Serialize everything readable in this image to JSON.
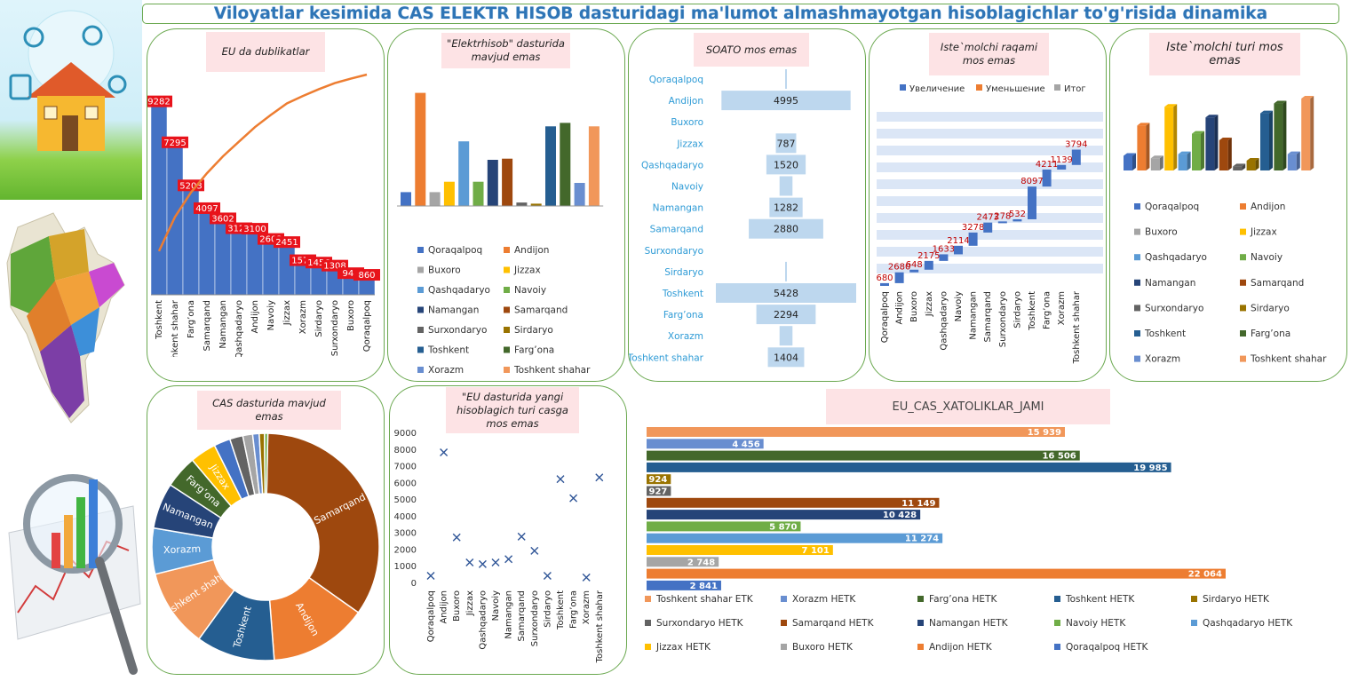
{
  "page_title": "Viloyatlar kesimida CAS ELEKTR HISOB dasturidagi ma'lumot almashmayotgan hisoblagichlar to'g'risida dinamika",
  "colors": {
    "blue": "#4472c4",
    "orange": "#ed7d31",
    "gray": "#a5a5a5",
    "yellow": "#ffc000",
    "lightblue": "#5b9bd5",
    "green": "#70ad47",
    "navy": "#264478",
    "brown": "#9e480e",
    "dgray": "#636363",
    "olive": "#997300",
    "steel": "#255e91",
    "dgreen": "#43682b",
    "periwinkle": "#698ed0",
    "salmon": "#f1975a",
    "border": "#6aa84f",
    "title_bg": "#fde3e5"
  },
  "legend_regions": [
    "Qoraqalpoq",
    "Andijon",
    "Buxoro",
    "Jizzax",
    "Qashqadaryo",
    "Navoiy",
    "Namangan",
    "Samarqand",
    "Surxondaryo",
    "Sirdaryo",
    "Toshkent",
    "Farg’ona",
    "Xorazm",
    "Toshkent shahar"
  ],
  "chart_data": [
    {
      "id": "eu_dublikat",
      "type": "bar",
      "title": "EU da dublikatlar",
      "categories": [
        "Toshkent",
        "Toshkent shahar",
        "Farg’ona",
        "Samarqand",
        "Namangan",
        "Qashqadaryo",
        "Andijon",
        "Navoiy",
        "Jizzax",
        "Xorazm",
        "Sirdaryo",
        "Surxondaryo",
        "Buxoro",
        "Qoraqalpoq"
      ],
      "values": [
        9282,
        7295,
        5203,
        4097,
        3602,
        3123,
        3100,
        2602,
        2451,
        1570,
        1456,
        1308,
        941,
        860
      ],
      "labels": [
        "9282",
        "7295",
        "5203",
        "4097",
        "3602",
        "3123",
        "3100",
        "2602",
        "2451",
        "1570",
        "1456",
        "1308",
        "941",
        "860"
      ],
      "ylim": [
        0,
        10000
      ],
      "cumulative_line": true
    },
    {
      "id": "elektrhisob",
      "type": "bar",
      "title": "\"Elektrhisob\" dasturida mavjud emas",
      "categories": [
        "Qoraqalpoq",
        "Andijon",
        "Buxoro",
        "Jizzax",
        "Qashqadaryo",
        "Navoiy",
        "Namangan",
        "Samarqand",
        "Surxondaryo",
        "Sirdaryo",
        "Toshkent",
        "Farg’ona",
        "Xorazm",
        "Toshkent shahar"
      ],
      "values": [
        12,
        98,
        12,
        21,
        56,
        21,
        40,
        41,
        3,
        2,
        69,
        72,
        20,
        69
      ],
      "ylim": [
        0,
        100
      ]
    },
    {
      "id": "soato",
      "type": "bar",
      "title": "SOATO mos emas",
      "categories": [
        "Qoraqalpoq",
        "Andijon",
        "Buxoro",
        "Jizzax",
        "Qashqadaryo",
        "Navoiy",
        "Namangan",
        "Samarqand",
        "Surxondaryo",
        "Sirdaryo",
        "Toshkent",
        "Farg’ona",
        "Xorazm",
        "Toshkent shahar"
      ],
      "values": [
        40,
        4995,
        0,
        787,
        1520,
        500,
        1282,
        2880,
        0,
        40,
        5428,
        2294,
        500,
        1404
      ],
      "labels": [
        "",
        "4995",
        "",
        "787",
        "1520",
        "",
        "1282",
        "2880",
        "",
        "",
        "5428",
        "2294",
        "",
        "1404"
      ]
    },
    {
      "id": "istemolchi_raqami",
      "type": "bar",
      "title": "Iste`molchi raqami mos emas",
      "legend": [
        "Увеличение",
        "Уменьшение",
        "Итог"
      ],
      "categories": [
        "Qoraqalpoq",
        "Andijon",
        "Buxoro",
        "Jizzax",
        "Qashqadaryo",
        "Navoiy",
        "Namangan",
        "Samarqand",
        "Surxondaryo",
        "Sirdaryo",
        "Toshkent",
        "Farg’ona",
        "Xorazm",
        "Toshkent shahar"
      ],
      "values": [
        680,
        2680,
        648,
        2175,
        1633,
        2114,
        3278,
        2473,
        278,
        532,
        8097,
        4211,
        1139,
        3794
      ],
      "labels": [
        "680",
        "2680",
        "648",
        "2175",
        "1633",
        "2114",
        "3278",
        "2473",
        "278",
        "532",
        "8097",
        "4211",
        "1139",
        "3794"
      ],
      "ylim": [
        0,
        40000
      ]
    },
    {
      "id": "istemolchi_turi",
      "type": "bar",
      "title": "Iste`molchi turi mos emas",
      "categories": [
        "Qoraqalpoq",
        "Andijon",
        "Buxoro",
        "Jizzax",
        "Qashqadaryo",
        "Navoiy",
        "Namangan",
        "Samarqand",
        "Surxondaryo",
        "Sirdaryo",
        "Toshkent",
        "Farg’ona",
        "Xorazm",
        "Toshkent shahar"
      ],
      "values": [
        18,
        55,
        15,
        78,
        20,
        45,
        65,
        37,
        5,
        12,
        70,
        82,
        20,
        88
      ],
      "ylim": [
        0,
        100
      ]
    },
    {
      "id": "cas_mavjud_emas",
      "type": "pie",
      "title": "CAS dasturida mavjud emas",
      "categories": [
        "Samarqand",
        "Andijon",
        "Toshkent",
        "Toshkent shahar",
        "Xorazm",
        "Namangan",
        "Farg’ona",
        "Jizzax",
        "Qoraqalpoq",
        "Surxondaryo",
        "Buxoro",
        "Qashqadaryo",
        "Sirdaryo",
        "Navoiy"
      ],
      "values": [
        37,
        15,
        12,
        12,
        7,
        7,
        5,
        4,
        2.5,
        2,
        1.5,
        1,
        0.8,
        0.5
      ],
      "labels": [
        "Samarqand",
        "Andijon",
        "Toshkent",
        "Toshkent shahar",
        "Xorazm",
        "Namangan",
        "Farg’ona",
        "Jizzax",
        "",
        "",
        "",
        "",
        "",
        ""
      ]
    },
    {
      "id": "eu_yangi_turi",
      "type": "scatter",
      "title": "\"EU dasturida yangi hisoblagich turi casga mos emas",
      "categories": [
        "Qoraqalpoq",
        "Andijon",
        "Buxoro",
        "Jizzax",
        "Qashqadaryo",
        "Navoiy",
        "Namangan",
        "Samarqand",
        "Surxondaryo",
        "Sirdaryo",
        "Toshkent",
        "Farg’ona",
        "Xorazm",
        "Toshkent shahar"
      ],
      "values": [
        400,
        7800,
        2700,
        1200,
        1100,
        1200,
        1400,
        2750,
        1900,
        400,
        6200,
        5050,
        300,
        6300
      ],
      "yticks": [
        "0",
        "1000",
        "2000",
        "3000",
        "4000",
        "5000",
        "6000",
        "7000",
        "8000",
        "9000"
      ],
      "ylim": [
        0,
        9000
      ]
    },
    {
      "id": "eu_cas_xatoliklar",
      "type": "bar",
      "orientation": "horizontal",
      "title": "EU_CAS_XATOLIKLAR_JAMI",
      "categories": [
        "Toshkent shahar ETK",
        "Xorazm HETK",
        "Farg’ona HETK",
        "Toshkent HETK",
        "Sirdaryo HETK",
        "Surxondaryo HETK",
        "Samarqand HETK",
        "Namangan HETK",
        "Navoiy HETK",
        "Qashqadaryo HETK",
        "Jizzax HETK",
        "Buxoro HETK",
        "Andijon HETK",
        "Qoraqalpoq HETK"
      ],
      "values": [
        15939,
        4456,
        16506,
        19985,
        924,
        927,
        11149,
        10428,
        5870,
        11274,
        7101,
        2748,
        22064,
        2841
      ],
      "labels": [
        "15 939",
        "4 456",
        "16 506",
        "19 985",
        "924",
        "927",
        "11 149",
        "10 428",
        "5 870",
        "11 274",
        "7 101",
        "2 748",
        "22 064",
        "2 841"
      ],
      "xlim": [
        0,
        23000
      ]
    }
  ]
}
